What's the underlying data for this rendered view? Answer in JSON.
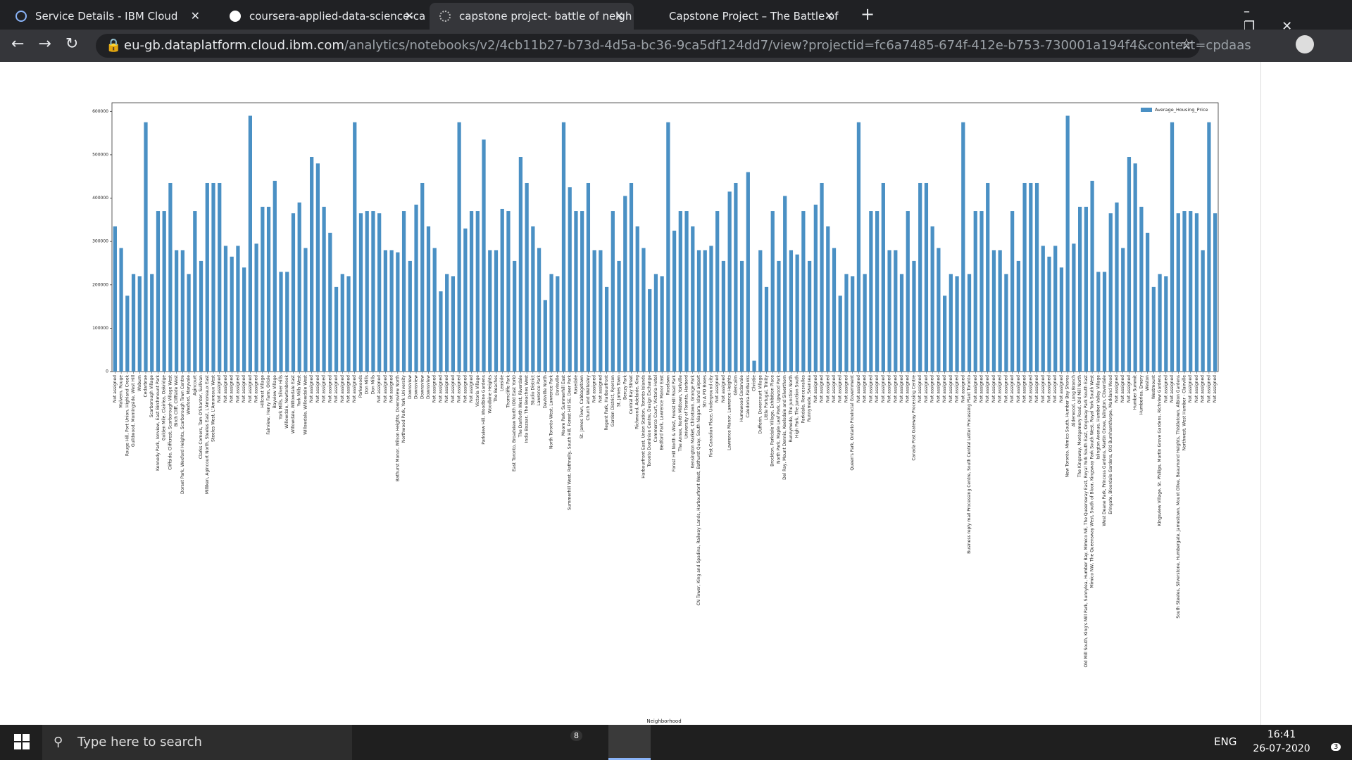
{
  "browser": {
    "tabs": [
      "Service Details - IBM Cloud",
      "coursera-applied-data-science-ca",
      "capstone project- battle of neigh",
      "Capstone Project – The Battle of"
    ],
    "url_host": "eu-gb.dataplatform.cloud.ibm.com",
    "url_path": "/analytics/notebooks/v2/4cb11b27-b73d-4d5a-bc36-9ca5df124dd7/view?projectid=fc6a7485-674f-412e-b753-730001a194f4&context=cpdaas"
  },
  "taskbar": {
    "search": "Type here to search",
    "mail_badge": "8",
    "language": "ENG",
    "time": "16:41",
    "date": "26-07-2020",
    "notifications": "3"
  },
  "chart_data": {
    "type": "bar",
    "x_label": "Neighborhood",
    "color": "#4a90c4",
    "legend": "upper right",
    "series": [
      {
        "name": "Average_Housing_Price",
        "color": "#4a90c4",
        "values": [
          335000,
          285000,
          175000,
          225000,
          220000,
          575000,
          225000,
          370000,
          370000,
          435000,
          280000,
          280000,
          225000,
          370000,
          255000,
          435000,
          435000,
          435000,
          290000,
          265000,
          290000,
          240000,
          590000,
          295000,
          380000,
          380000,
          440000,
          230000,
          230000,
          365000,
          390000,
          285000,
          495000,
          480000,
          380000,
          320000,
          195000,
          225000,
          220000,
          575000,
          365000,
          370000,
          370000,
          365000,
          280000,
          280000,
          275000,
          370000,
          255000,
          385000,
          435000,
          335000,
          285000,
          185000,
          225000,
          220000,
          575000,
          330000,
          370000,
          370000,
          535000,
          280000,
          280000,
          375000,
          370000,
          255000,
          495000,
          435000,
          335000,
          285000,
          165000,
          225000,
          220000,
          575000,
          425000,
          370000,
          370000,
          435000,
          280000,
          280000,
          195000,
          370000,
          255000,
          405000,
          435000,
          335000,
          285000,
          190000,
          225000,
          220000,
          575000,
          325000,
          370000,
          370000,
          335000,
          280000,
          280000,
          290000,
          370000,
          255000,
          415000,
          435000,
          255000,
          460000,
          25000,
          280000,
          195000,
          370000,
          255000,
          405000,
          280000,
          270000,
          370000,
          255000,
          385000,
          435000,
          335000,
          285000,
          175000,
          225000,
          220000,
          575000,
          225000,
          370000,
          370000,
          435000,
          280000,
          280000,
          225000,
          370000,
          255000,
          435000,
          435000,
          335000,
          285000,
          175000,
          225000,
          220000,
          575000,
          225000,
          370000,
          370000,
          435000,
          280000,
          280000,
          225000,
          370000,
          255000,
          435000,
          435000,
          435000,
          290000,
          265000,
          290000,
          240000,
          590000,
          295000,
          380000,
          380000,
          440000,
          230000,
          230000,
          365000,
          390000,
          285000,
          495000,
          480000,
          380000,
          320000,
          195000,
          225000,
          220000,
          575000,
          365000,
          370000,
          370000,
          365000,
          280000,
          575000,
          365000
        ]
      }
    ],
    "categories": [
      "Not assigned",
      "Malvern, Rouge",
      "Rouge Hill, Port Union, Highland Creek",
      "Guildwood, Morningside, West Hill",
      "Woburn",
      "Cedarbrae",
      "Scarborough Village",
      "Kennedy Park, Ionview, East Birchmount Park",
      "Golden Mile, Clairlea, Oakridge",
      "Cliffside, Cliffcrest, Scarborough Village West",
      "Birch Cliff, Cliffside West",
      "Dorset Park, Wexford Heights, Scarborough Town Centre",
      "Wexford, Maryvale",
      "Agincourt",
      "Clarks Corners, Tam O'Shanter, Sullivan",
      "Milliken, Agincourt North, Steeles East, L'Amoreaux East",
      "Steeles West, L'Amoreaux West",
      "Not assigned",
      "Not assigned",
      "Not assigned",
      "Not assigned",
      "Not assigned",
      "Not assigned",
      "Not assigned",
      "Hillcrest Village",
      "Fairview, Henry Farm, Oriole",
      "Bayview Village",
      "York Mills, Silver Hills",
      "Willowdale, Newtonbrook",
      "Willowdale, Willowdale East",
      "York Mills West",
      "Willowdale, Willowdale West",
      "Not assigned",
      "Not assigned",
      "Not assigned",
      "Not assigned",
      "Not assigned",
      "Not assigned",
      "Not assigned",
      "Not assigned",
      "Parkwoods",
      "Don Mills",
      "Don Mills",
      "Not assigned",
      "Not assigned",
      "Not assigned",
      "Bathurst Manor, Wilson Heights, Downsview North",
      "Northwood Park, York University",
      "Downsview",
      "Downsview",
      "Downsview",
      "Downsview",
      "Not assigned",
      "Not assigned",
      "Not assigned",
      "Not assigned",
      "Not assigned",
      "Not assigned",
      "Not assigned",
      "Victoria Village",
      "Parkview Hill, Woodbine Gardens",
      "Woodbine Heights",
      "The Beaches",
      "Leaside",
      "Thorncliffe Park",
      "East Toronto, Broadview North (Old East York)",
      "The Danforth West, Riverdale",
      "India Bazaar, The Beaches West",
      "Studio District",
      "Lawrence Park",
      "Davisville North",
      "North Toronto West, Lawrence Park",
      "Davisville",
      "Moore Park, Summerhill East",
      "Summerhill West, Rathnelly, South Hill, Forest Hill SE, Deer Park",
      "Rosedale",
      "St. James Town, Cabbagetown",
      "Church and Wellesley",
      "Not assigned",
      "Not assigned",
      "Regent Park, Harbourfront",
      "Garden District, Ryerson",
      "St. James Town",
      "Berczy Park",
      "Central Bay Street",
      "Richmond, Adelaide, King",
      "Harbourfront East, Union Station, Toronto Islands",
      "Toronto Dominion Centre, Design Exchange",
      "Commerce Court, Victoria Hotel",
      "Bedford Park, Lawrence Manor East",
      "Roselawn",
      "Forest Hill North & West, Forest Hill Road Park",
      "The Annex, North Midtown, Yorkville",
      "University of Toronto, Harbord",
      "Kensington Market, Chinatown, Grange Park",
      "CN Tower, King and Spadina, Railway Lands, Harbourfront West, Bathurst Quay, South Niagara, Island airport",
      "Stn A PO Boxes",
      "First Canadian Place, Underground city",
      "Not assigned",
      "Not assigned",
      "Lawrence Manor, Lawrence Heights",
      "Glencairn",
      "Humewood-Cedarvale",
      "Caledonia-Fairbanks",
      "Christie",
      "Dufferin, Dovercourt Village",
      "Little Portugal, Trinity",
      "Brockton, Parkdale Village, Exhibition Place",
      "North Park, Maple Leaf Park, Upwood Park",
      "Del Ray, Mount Dennis, Keelsdale and Silverthorn",
      "Runnymede, The Junction North",
      "High Park, The Junction South",
      "Parkdale, Roncesvalles",
      "Runnymede, Swansea",
      "Not assigned",
      "Not assigned",
      "Not assigned",
      "Not assigned",
      "Not assigned",
      "Not assigned",
      "Queen's Park, Ontario Provincial Government",
      "Not assigned",
      "Not assigned",
      "Not assigned",
      "Not assigned",
      "Not assigned",
      "Not assigned",
      "Not assigned",
      "Not assigned",
      "Not assigned",
      "Canada Post Gateway Processing Centre",
      "Not assigned",
      "Not assigned",
      "Not assigned",
      "Not assigned",
      "Not assigned",
      "Not assigned",
      "Not assigned",
      "Not assigned",
      "Business reply mail Processing Centre, South Central Letter Processing Plant Toronto",
      "Not assigned",
      "Not assigned",
      "Not assigned",
      "Not assigned",
      "Not assigned",
      "Not assigned",
      "Not assigned",
      "Not assigned",
      "Not assigned",
      "Not assigned",
      "Not assigned",
      "Not assigned",
      "Not assigned",
      "Not assigned",
      "Not assigned",
      "New Toronto, Mimico South, Humber Bay Shores",
      "Alderwood, Long Branch",
      "The Kingsway, Montgomery Road, Old Mill North",
      "Old Mill South, King's Mill Park, Sunnylea, Humber Bay, Mimico NE, The Queensway East, Royal York South East, Kingsway Park South East",
      "Mimico NW, The Queensway West, South of Bloor, Kingsway Park South West, Royal York South West",
      "Islington Avenue, Humber Valley Village",
      "West Deane Park, Princess Gardens, Martin Grove, Islington, Cloverdale",
      "Eringate, Bloordale Gardens, Old Burnhamthorpe, Markland Wood",
      "Not assigned",
      "Not assigned",
      "Not assigned",
      "Humber Summit",
      "Humberlea, Emery",
      "Weston",
      "Westmount",
      "Kingsview Village, St. Phillips, Martin Grove Gardens, Richview Gardens",
      "Not assigned",
      "Not assigned",
      "South Steeles, Silverstone, Humbergate, Jamestown, Mount Olive, Beaumond Heights, Thistletown, Albion Gardens",
      "Northwest, West Humber - Clairville",
      "Not assigned",
      "Not assigned",
      "Not assigned",
      "Not assigned",
      "Not assigned"
    ],
    "ylim": [
      0,
      620000
    ],
    "yticks": [
      0,
      100000,
      200000,
      300000,
      400000,
      500000,
      600000
    ]
  }
}
